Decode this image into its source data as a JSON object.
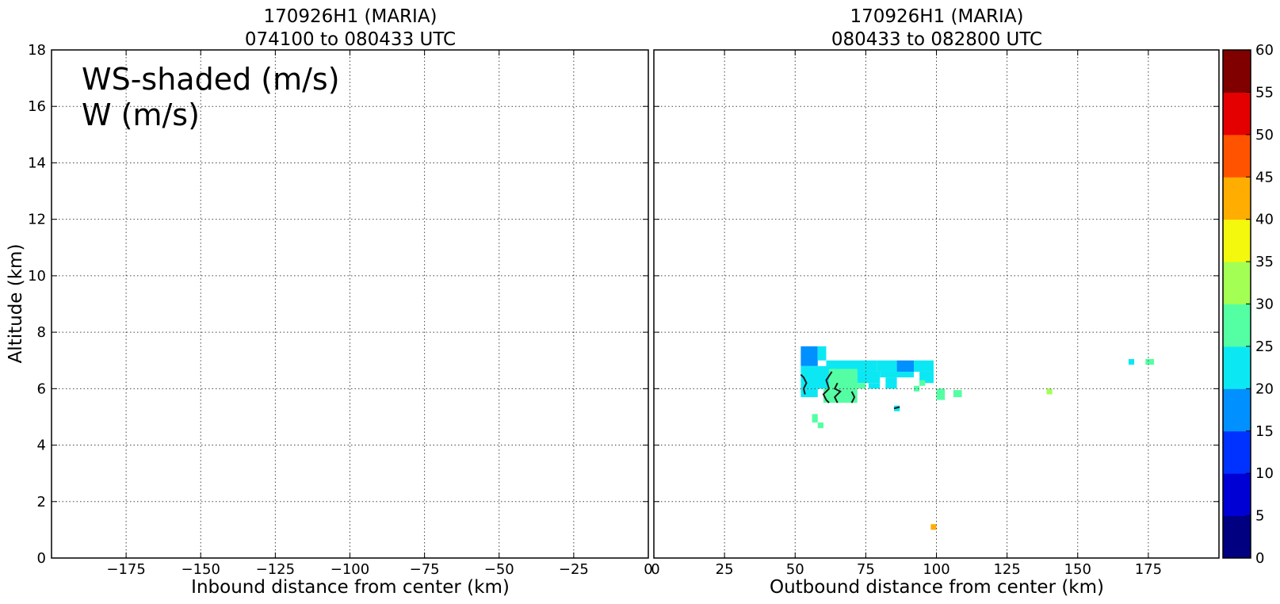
{
  "chart_data": [
    {
      "type": "heatmap",
      "title": "170926H1 (MARIA)",
      "subtitle": "074100 to 080433 UTC",
      "xlabel": "Inbound distance from center (km)",
      "ylabel": "Altitude (km)",
      "xlim": [
        -200,
        0
      ],
      "ylim": [
        0,
        18
      ],
      "xticks": [
        "−175",
        "−150",
        "−125",
        "−100",
        "−75",
        "−50",
        "−25",
        "0"
      ],
      "xtick_values": [
        -175,
        -150,
        -125,
        -100,
        -75,
        -50,
        -25,
        0
      ],
      "yticks": [
        "0",
        "2",
        "4",
        "6",
        "8",
        "10",
        "12",
        "14",
        "16",
        "18"
      ],
      "ytick_values": [
        0,
        2,
        4,
        6,
        8,
        10,
        12,
        14,
        16,
        18
      ],
      "grid": true,
      "annotations": [
        "WS-shaded (m/s)",
        "W (m/s)"
      ],
      "cells": []
    },
    {
      "type": "heatmap",
      "title": "170926H1 (MARIA)",
      "subtitle": "080433 to 082800 UTC",
      "xlabel": "Outbound distance from center (km)",
      "xlim": [
        0,
        200
      ],
      "ylim": [
        0,
        18
      ],
      "xticks": [
        "0",
        "25",
        "50",
        "75",
        "100",
        "125",
        "150",
        "175"
      ],
      "xtick_values": [
        0,
        25,
        50,
        75,
        100,
        125,
        150,
        175
      ],
      "grid": true,
      "cells": [
        {
          "x0": 52,
          "x1": 58,
          "y0": 6.8,
          "y1": 7.5,
          "v": 15
        },
        {
          "x0": 58,
          "x1": 61,
          "y0": 7.0,
          "y1": 7.5,
          "v": 20
        },
        {
          "x0": 61,
          "x1": 79,
          "y0": 6.6,
          "y1": 7.0,
          "v": 20
        },
        {
          "x0": 79,
          "x1": 86,
          "y0": 6.6,
          "y1": 7.0,
          "v": 20
        },
        {
          "x0": 86,
          "x1": 92,
          "y0": 6.6,
          "y1": 7.0,
          "v": 15
        },
        {
          "x0": 92,
          "x1": 99,
          "y0": 6.6,
          "y1": 7.0,
          "v": 20
        },
        {
          "x0": 52,
          "x1": 62,
          "y0": 6.0,
          "y1": 6.8,
          "v": 20
        },
        {
          "x0": 62,
          "x1": 72,
          "y0": 6.0,
          "y1": 6.7,
          "v": 25
        },
        {
          "x0": 72,
          "x1": 80,
          "y0": 6.2,
          "y1": 6.6,
          "v": 20
        },
        {
          "x0": 80,
          "x1": 92,
          "y0": 6.4,
          "y1": 6.6,
          "v": 20
        },
        {
          "x0": 94,
          "x1": 99,
          "y0": 6.2,
          "y1": 6.6,
          "v": 20
        },
        {
          "x0": 82,
          "x1": 86,
          "y0": 6.0,
          "y1": 6.4,
          "v": 20
        },
        {
          "x0": 52,
          "x1": 58,
          "y0": 5.7,
          "y1": 6.0,
          "v": 20
        },
        {
          "x0": 60,
          "x1": 72,
          "y0": 5.5,
          "y1": 6.0,
          "v": 25
        },
        {
          "x0": 72,
          "x1": 75,
          "y0": 6.0,
          "y1": 6.2,
          "v": 25
        },
        {
          "x0": 76,
          "x1": 80,
          "y0": 6.0,
          "y1": 6.2,
          "v": 20
        },
        {
          "x0": 92,
          "x1": 94,
          "y0": 5.9,
          "y1": 6.1,
          "v": 25
        },
        {
          "x0": 94,
          "x1": 96,
          "y0": 6.1,
          "y1": 6.3,
          "v": 25
        },
        {
          "x0": 100,
          "x1": 103,
          "y0": 5.6,
          "y1": 6.0,
          "v": 25
        },
        {
          "x0": 106,
          "x1": 109,
          "y0": 5.7,
          "y1": 5.95,
          "v": 25
        },
        {
          "x0": 85,
          "x1": 87,
          "y0": 5.2,
          "y1": 5.4,
          "v": 20
        },
        {
          "x0": 56,
          "x1": 58,
          "y0": 4.8,
          "y1": 5.1,
          "v": 25
        },
        {
          "x0": 58,
          "x1": 60,
          "y0": 4.6,
          "y1": 4.8,
          "v": 25
        },
        {
          "x0": 139,
          "x1": 141,
          "y0": 5.8,
          "y1": 6.0,
          "v": 30
        },
        {
          "x0": 168,
          "x1": 170,
          "y0": 6.85,
          "y1": 7.05,
          "v": 20
        },
        {
          "x0": 174,
          "x1": 177,
          "y0": 6.85,
          "y1": 7.05,
          "v": 25
        },
        {
          "x0": 98,
          "x1": 100,
          "y0": 1.0,
          "y1": 1.2,
          "v": 40
        }
      ],
      "contours": [
        {
          "x": [
            52,
            53,
            54,
            53,
            53.5
          ],
          "y": [
            6.5,
            6.4,
            6.2,
            6.0,
            5.8
          ]
        },
        {
          "x": [
            63,
            61,
            62,
            60,
            61,
            62
          ],
          "y": [
            6.6,
            6.3,
            6.0,
            5.8,
            5.6,
            5.5
          ]
        },
        {
          "x": [
            65,
            64,
            66,
            64,
            65
          ],
          "y": [
            6.2,
            6.0,
            5.9,
            5.7,
            5.5
          ]
        },
        {
          "x": [
            70,
            71,
            70
          ],
          "y": [
            5.9,
            5.7,
            5.5
          ]
        },
        {
          "x": [
            85,
            87
          ],
          "y": [
            5.3,
            5.35
          ]
        }
      ]
    }
  ],
  "colorbar": {
    "ticks": [
      "0",
      "5",
      "10",
      "15",
      "20",
      "25",
      "30",
      "35",
      "40",
      "45",
      "50",
      "55",
      "60"
    ],
    "colors": [
      "#000080",
      "#0000d5",
      "#0032ff",
      "#0090ff",
      "#0ce8f3",
      "#54ffa3",
      "#a3ff54",
      "#f3f80c",
      "#ffad00",
      "#ff5300",
      "#e40000",
      "#800000"
    ]
  }
}
